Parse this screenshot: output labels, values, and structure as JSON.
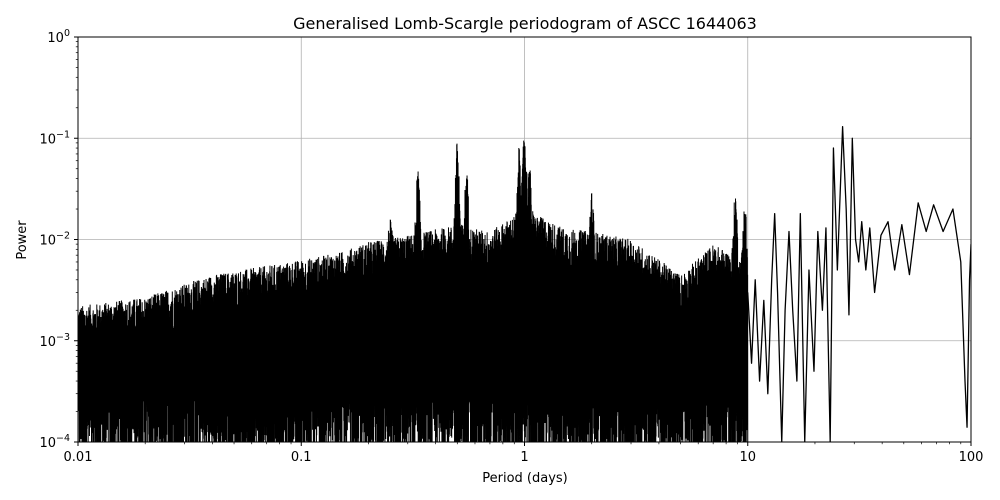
{
  "chart_data": {
    "type": "line",
    "title": "Generalised Lomb-Scargle periodogram of ASCC 1644063",
    "xlabel": "Period (days)",
    "ylabel": "Power",
    "xscale": "log",
    "yscale": "log",
    "xlim": [
      0.01,
      100
    ],
    "ylim": [
      0.0001,
      1
    ],
    "grid": true,
    "line_color": "#000000",
    "x_ticks": [
      {
        "value": 0.01,
        "label": "0.01"
      },
      {
        "value": 0.1,
        "label": "0.1"
      },
      {
        "value": 1,
        "label": "1"
      },
      {
        "value": 10,
        "label": "10"
      },
      {
        "value": 100,
        "label": "100"
      }
    ],
    "y_ticks": [
      {
        "value": 0.0001,
        "base": "10",
        "exp": "−4"
      },
      {
        "value": 0.001,
        "base": "10",
        "exp": "−3"
      },
      {
        "value": 0.01,
        "base": "10",
        "exp": "−2"
      },
      {
        "value": 0.1,
        "base": "10",
        "exp": "−1"
      },
      {
        "value": 1,
        "base": "10",
        "exp": "0"
      }
    ],
    "envelope": [
      [
        0.01,
        0.0022
      ],
      [
        0.02,
        0.0027
      ],
      [
        0.04,
        0.0045
      ],
      [
        0.07,
        0.0055
      ],
      [
        0.1,
        0.0063
      ],
      [
        0.15,
        0.0075
      ],
      [
        0.2,
        0.0095
      ],
      [
        0.3,
        0.011
      ],
      [
        0.5,
        0.014
      ],
      [
        0.7,
        0.012
      ],
      [
        1.0,
        0.02
      ],
      [
        1.5,
        0.013
      ],
      [
        2.0,
        0.012
      ],
      [
        3.0,
        0.01
      ],
      [
        5.0,
        0.0045
      ],
      [
        7.0,
        0.009
      ],
      [
        10.0,
        0.006
      ]
    ],
    "peaks": [
      {
        "x": 0.25,
        "y": 0.016
      },
      {
        "x": 0.333,
        "y": 0.05
      },
      {
        "x": 0.5,
        "y": 0.095
      },
      {
        "x": 0.55,
        "y": 0.05
      },
      {
        "x": 0.95,
        "y": 0.09
      },
      {
        "x": 1.0,
        "y": 0.125
      },
      {
        "x": 1.05,
        "y": 0.06
      },
      {
        "x": 2.0,
        "y": 0.03
      },
      {
        "x": 8.8,
        "y": 0.03
      },
      {
        "x": 9.7,
        "y": 0.025
      }
    ],
    "long_period_curve": [
      [
        10.0,
        0.003
      ],
      [
        10.4,
        0.0006
      ],
      [
        10.8,
        0.004
      ],
      [
        11.3,
        0.0004
      ],
      [
        11.8,
        0.0025
      ],
      [
        12.3,
        0.0003
      ],
      [
        12.8,
        0.004
      ],
      [
        13.2,
        0.018
      ],
      [
        13.6,
        0.003
      ],
      [
        14.2,
        0.0001
      ],
      [
        14.7,
        0.002
      ],
      [
        15.3,
        0.012
      ],
      [
        15.9,
        0.002
      ],
      [
        16.6,
        0.0004
      ],
      [
        17.2,
        0.018
      ],
      [
        18.0,
        0.0001
      ],
      [
        18.8,
        0.005
      ],
      [
        19.8,
        0.0005
      ],
      [
        20.6,
        0.012
      ],
      [
        21.6,
        0.002
      ],
      [
        22.4,
        0.013
      ],
      [
        23.4,
        0.0001
      ],
      [
        24.2,
        0.08
      ],
      [
        25.2,
        0.005
      ],
      [
        26.6,
        0.13
      ],
      [
        27.6,
        0.02
      ],
      [
        28.4,
        0.0018
      ],
      [
        29.4,
        0.1
      ],
      [
        30.4,
        0.01
      ],
      [
        31.4,
        0.006
      ],
      [
        32.4,
        0.015
      ],
      [
        33.8,
        0.005
      ],
      [
        35.2,
        0.013
      ],
      [
        37.0,
        0.003
      ],
      [
        39.5,
        0.011
      ],
      [
        42.5,
        0.015
      ],
      [
        45.5,
        0.005
      ],
      [
        49.0,
        0.014
      ],
      [
        53.0,
        0.0045
      ],
      [
        58.0,
        0.023
      ],
      [
        63.0,
        0.012
      ],
      [
        68.0,
        0.022
      ],
      [
        75.0,
        0.012
      ],
      [
        83.0,
        0.02
      ],
      [
        90.0,
        0.006
      ],
      [
        94.0,
        0.0004
      ],
      [
        96.0,
        0.00014
      ],
      [
        98.5,
        0.004
      ],
      [
        100.0,
        0.009
      ]
    ]
  }
}
